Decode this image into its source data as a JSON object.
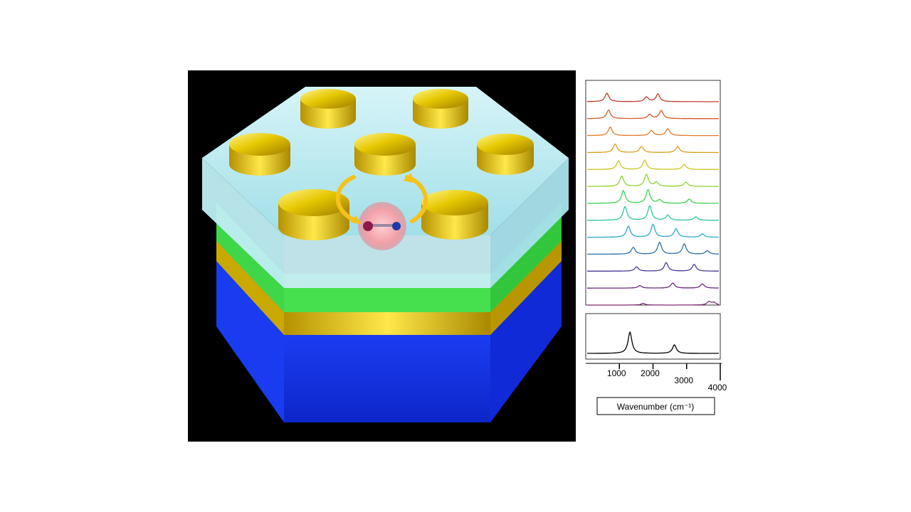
{
  "illustration": {
    "layers": [
      "glass-superstrate",
      "green-spacer",
      "gold-film",
      "blue-substrate"
    ],
    "disk_count": 7,
    "colors": {
      "glass": "#a9e6ee",
      "green": "#34d93a",
      "gold": "#e6c800",
      "blue": "#1733e6",
      "molecule_atom_left": "#8b1a4a",
      "molecule_atom_right": "#1f3aa8",
      "arrow": "#f5c21b"
    }
  },
  "chart_data": [
    {
      "type": "line",
      "panel": "stacked-spectra",
      "xlabel": "",
      "ylabel": "",
      "xlim": [
        0,
        4000
      ],
      "series": [
        {
          "color": "#c0392b",
          "peaks": [
            [
              600,
              1.0
            ],
            [
              1800,
              0.55
            ],
            [
              2150,
              0.9
            ]
          ]
        },
        {
          "color": "#d35a2a",
          "peaks": [
            [
              650,
              1.0
            ],
            [
              1900,
              0.5
            ],
            [
              2250,
              0.95
            ]
          ]
        },
        {
          "color": "#e07b28",
          "peaks": [
            [
              700,
              1.0
            ],
            [
              1950,
              0.6
            ],
            [
              2450,
              0.8
            ]
          ]
        },
        {
          "color": "#d4a017",
          "peaks": [
            [
              850,
              1.0
            ],
            [
              1650,
              0.7
            ],
            [
              2750,
              0.7
            ]
          ]
        },
        {
          "color": "#c8c61a",
          "peaks": [
            [
              950,
              1.0
            ],
            [
              1750,
              1.1
            ],
            [
              2950,
              0.6
            ]
          ]
        },
        {
          "color": "#8fd12b",
          "peaks": [
            [
              1050,
              1.2
            ],
            [
              1800,
              1.4
            ],
            [
              2100,
              0.5
            ],
            [
              3000,
              0.5
            ]
          ]
        },
        {
          "color": "#3fcf55",
          "peaks": [
            [
              1100,
              1.5
            ],
            [
              1850,
              1.6
            ],
            [
              2200,
              0.4
            ],
            [
              3100,
              0.5
            ]
          ]
        },
        {
          "color": "#27c7a0",
          "peaks": [
            [
              1150,
              1.6
            ],
            [
              1900,
              1.7
            ],
            [
              2450,
              0.6
            ],
            [
              3300,
              0.4
            ]
          ]
        },
        {
          "color": "#24a8c9",
          "peaks": [
            [
              1250,
              1.3
            ],
            [
              2000,
              1.5
            ],
            [
              2700,
              1.0
            ],
            [
              3500,
              0.4
            ]
          ]
        },
        {
          "color": "#2f6ea8",
          "peaks": [
            [
              1400,
              0.8
            ],
            [
              2200,
              1.4
            ],
            [
              2950,
              1.2
            ],
            [
              3650,
              0.4
            ]
          ]
        },
        {
          "color": "#4b3a9a",
          "peaks": [
            [
              1500,
              0.5
            ],
            [
              2400,
              1.0
            ],
            [
              3250,
              0.8
            ]
          ]
        },
        {
          "color": "#6a2a7a",
          "peaks": [
            [
              1600,
              0.3
            ],
            [
              2600,
              0.6
            ],
            [
              3500,
              0.5
            ]
          ]
        },
        {
          "color": "#7a2a70",
          "peaks": [
            [
              1700,
              0.2
            ],
            [
              3700,
              0.4
            ],
            [
              3850,
              0.3
            ]
          ]
        }
      ]
    },
    {
      "type": "line",
      "panel": "reference-spectrum",
      "xlabel": "Wavenumber (cm⁻¹)",
      "ylabel": "",
      "xlim": [
        0,
        4000
      ],
      "xticks": [
        1000,
        2000,
        3000,
        4000
      ],
      "xtick_labels": [
        "1000",
        "2000",
        "3000",
        "4000"
      ],
      "series": [
        {
          "color": "#000000",
          "peaks": [
            [
              1300,
              1.0
            ],
            [
              2650,
              0.4
            ]
          ]
        }
      ]
    }
  ]
}
